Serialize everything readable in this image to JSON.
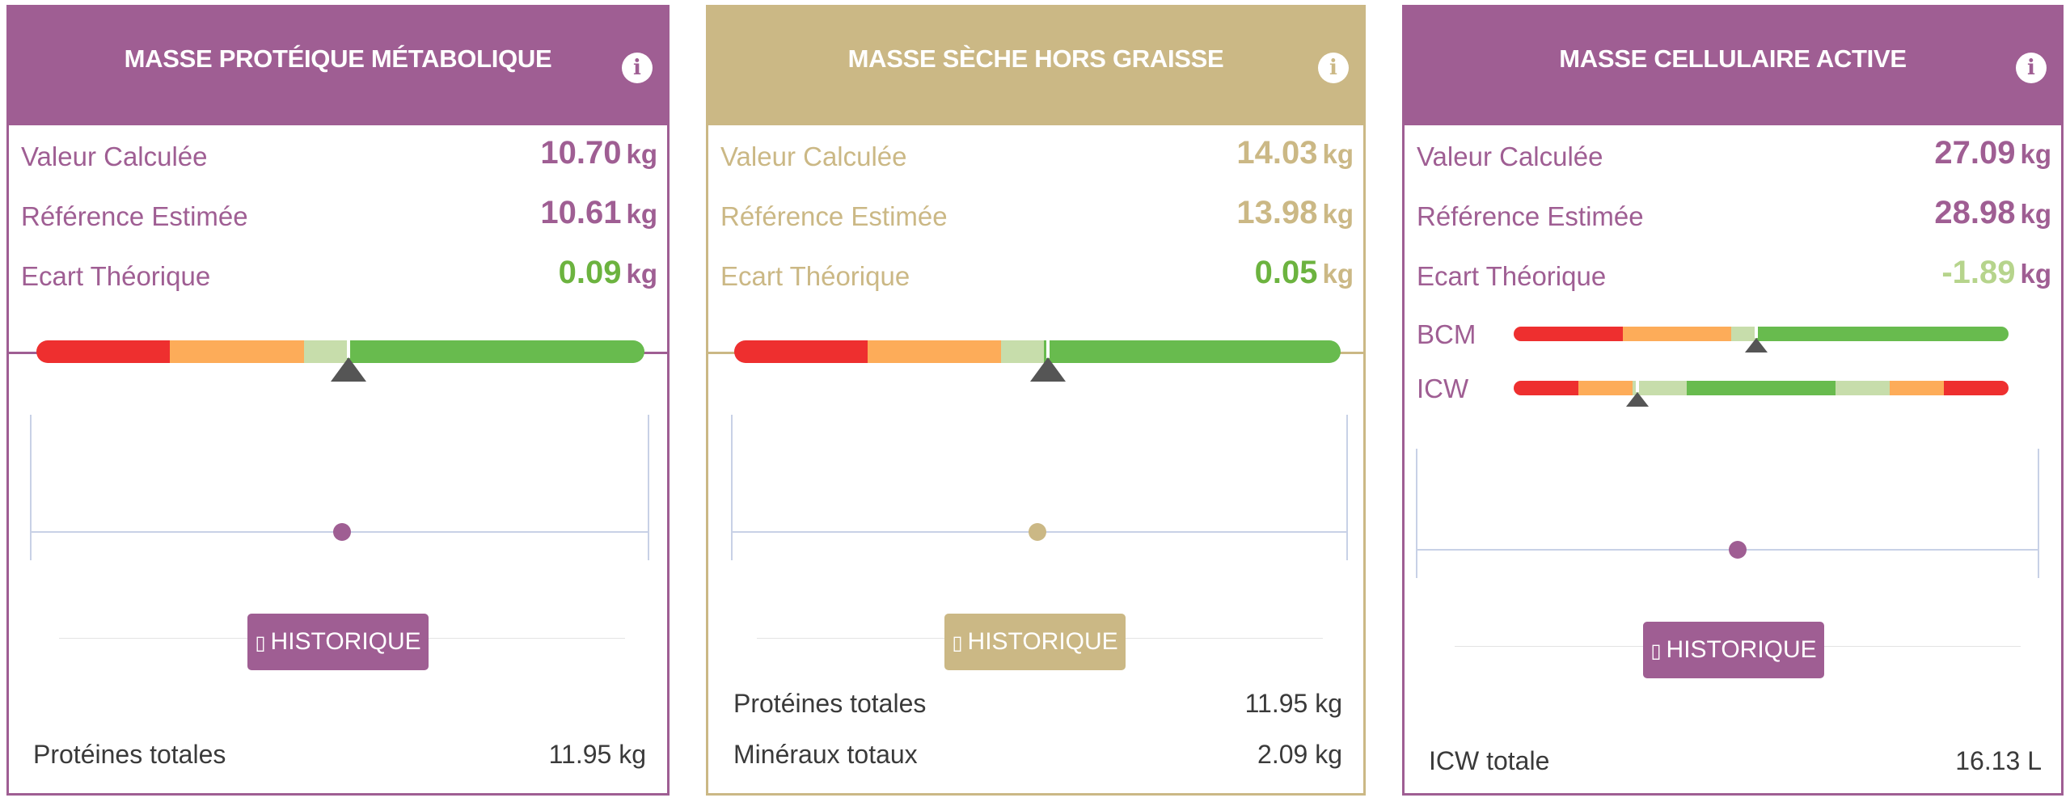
{
  "colors": {
    "purple": "#9f5e93",
    "gold": "#cbb885",
    "green": "#6cb33f",
    "light_green": "#b6d48c"
  },
  "cards": [
    {
      "title": "MASSE PROTÉIQUE MÉTABOLIQUE",
      "info_icon": "info-icon",
      "metrics": [
        {
          "label": "Valeur Calculée",
          "value": "10.70",
          "unit": "kg"
        },
        {
          "label": "Référence Estimée",
          "value": "10.61",
          "unit": "kg"
        },
        {
          "label": "Ecart Théorique",
          "value": "0.09",
          "unit": "kg"
        }
      ],
      "gauge_marker_fraction": 0.52,
      "history_button": {
        "icon": "history-icon",
        "label": "HISTORIQUE"
      },
      "footer": [
        {
          "label": "Protéines totales",
          "value": "11.95 kg"
        }
      ]
    },
    {
      "title": "MASSE SÈCHE HORS GRAISSE",
      "info_icon": "info-icon",
      "metrics": [
        {
          "label": "Valeur Calculée",
          "value": "14.03",
          "unit": "kg"
        },
        {
          "label": "Référence Estimée",
          "value": "13.98",
          "unit": "kg"
        },
        {
          "label": "Ecart Théorique",
          "value": "0.05",
          "unit": "kg"
        }
      ],
      "gauge_marker_fraction": 0.51,
      "history_button": {
        "icon": "history-icon",
        "label": "HISTORIQUE"
      },
      "footer": [
        {
          "label": "Protéines totales",
          "value": "11.95 kg"
        },
        {
          "label": "Minéraux totaux",
          "value": "2.09 kg"
        }
      ]
    },
    {
      "title": "MASSE CELLULAIRE ACTIVE",
      "info_icon": "info-icon",
      "metrics": [
        {
          "label": "Valeur Calculée",
          "value": "27.09",
          "unit": "kg"
        },
        {
          "label": "Référence Estimée",
          "value": "28.98",
          "unit": "kg"
        },
        {
          "label": "Ecart Théorique",
          "value": "-1.89",
          "unit": "kg"
        }
      ],
      "bars": [
        {
          "label": "BCM",
          "marker_fraction": 0.49
        },
        {
          "label": "ICW",
          "marker_fraction": 0.25
        }
      ],
      "history_button": {
        "icon": "history-icon",
        "label": "HISTORIQUE"
      },
      "footer": [
        {
          "label": "ICW totale",
          "value": "16.13 L"
        }
      ]
    }
  ]
}
